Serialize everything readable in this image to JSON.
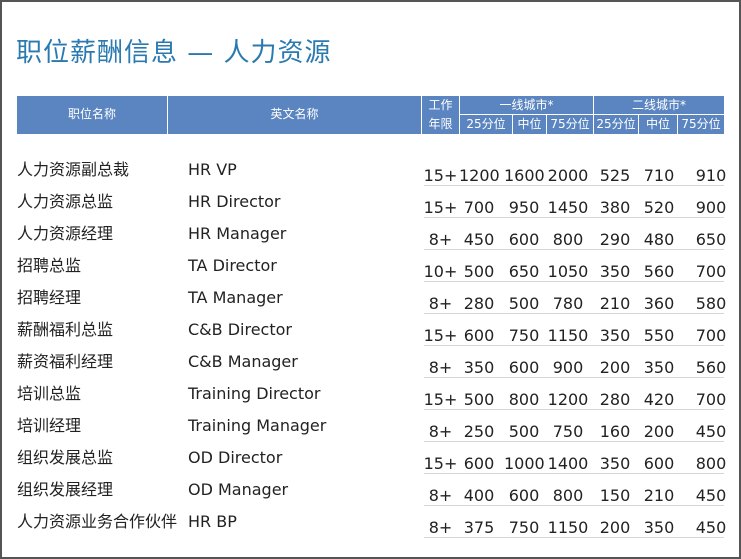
{
  "title": "职位薪酬信息 — 人力资源",
  "header": {
    "col_cn": "职位名称",
    "col_en": "英文名称",
    "col_years_1": "工作",
    "col_years_2": "年限",
    "group_tier1": "一线城市*",
    "group_tier2": "二线城市*",
    "p25": "25分位",
    "p50": "中位",
    "p75": "75分位"
  },
  "chart_data": {
    "type": "table",
    "title": "职位薪酬信息 — 人力资源",
    "columns": [
      "职位名称",
      "英文名称",
      "工作年限",
      "一线城市* 25分位",
      "一线城市* 中位",
      "一线城市* 75分位",
      "二线城市* 25分位",
      "二线城市* 中位",
      "二线城市* 75分位"
    ],
    "rows": [
      {
        "cn": "人力资源副总裁",
        "en": "HR VP",
        "years": "15+",
        "t1": [
          "1200",
          "1600",
          "2000"
        ],
        "t2": [
          "525",
          "710",
          "910"
        ]
      },
      {
        "cn": "人力资源总监",
        "en": "HR Director",
        "years": "15+",
        "t1": [
          "700",
          "950",
          "1450"
        ],
        "t2": [
          "380",
          "520",
          "900"
        ]
      },
      {
        "cn": "人力资源经理",
        "en": "HR Manager",
        "years": "8+",
        "t1": [
          "450",
          "600",
          "800"
        ],
        "t2": [
          "290",
          "480",
          "650"
        ]
      },
      {
        "cn": "招聘总监",
        "en": "TA  Director",
        "years": "10+",
        "t1": [
          "500",
          "650",
          "1050"
        ],
        "t2": [
          "350",
          "560",
          "700"
        ]
      },
      {
        "cn": "招聘经理",
        "en": "TA  Manager",
        "years": "8+",
        "t1": [
          "280",
          "500",
          "780"
        ],
        "t2": [
          "210",
          "360",
          "580"
        ]
      },
      {
        "cn": "薪酬福利总监",
        "en": "C&B Director",
        "years": "15+",
        "t1": [
          "600",
          "750",
          "1150"
        ],
        "t2": [
          "350",
          "550",
          "700"
        ]
      },
      {
        "cn": "薪资福利经理",
        "en": "C&B Manager",
        "years": "8+",
        "t1": [
          "350",
          "600",
          "900"
        ],
        "t2": [
          "200",
          "350",
          "560"
        ]
      },
      {
        "cn": "培训总监",
        "en": "Training Director",
        "years": "15+",
        "t1": [
          "500",
          "800",
          "1200"
        ],
        "t2": [
          "280",
          "420",
          "700"
        ]
      },
      {
        "cn": "培训经理",
        "en": "Training Manager",
        "years": "8+",
        "t1": [
          "250",
          "500",
          "750"
        ],
        "t2": [
          "160",
          "200",
          "450"
        ]
      },
      {
        "cn": "组织发展总监",
        "en": "OD Director",
        "years": "15+",
        "t1": [
          "600",
          "1000",
          "1400"
        ],
        "t2": [
          "350",
          "600",
          "800"
        ]
      },
      {
        "cn": "组织发展经理",
        "en": "OD Manager",
        "years": "8+",
        "t1": [
          "400",
          "600",
          "800"
        ],
        "t2": [
          "150",
          "210",
          "450"
        ]
      },
      {
        "cn": "人力资源业务合作伙伴",
        "en": "HR BP",
        "years": "8+",
        "t1": [
          "375",
          "750",
          "1150"
        ],
        "t2": [
          "200",
          "350",
          "450"
        ]
      }
    ]
  },
  "colors": {
    "title": "#2a7ab0",
    "header_bg": "#5b85c0",
    "row_separator": "#d6d6d6"
  }
}
